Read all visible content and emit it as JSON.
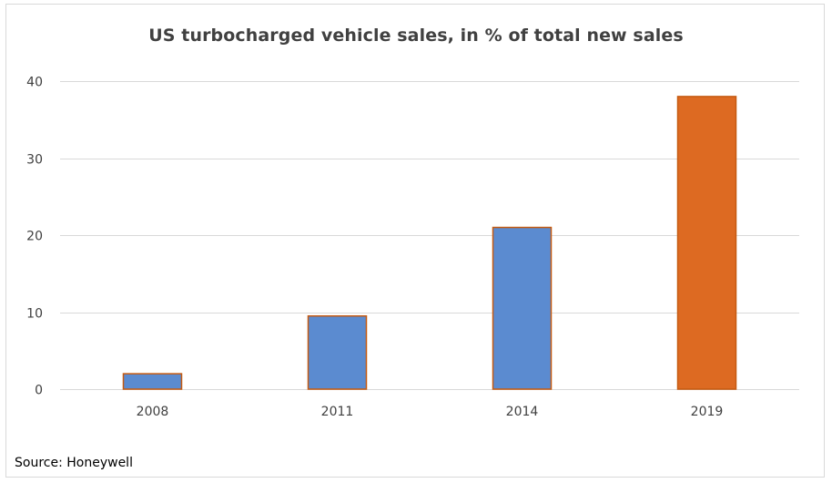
{
  "chart_data": {
    "type": "bar",
    "title": "US turbocharged  vehicle sales, in % of total new sales",
    "categories": [
      "2008",
      "2011",
      "2014",
      "2019"
    ],
    "values": [
      2,
      9.5,
      21,
      38
    ],
    "bar_colors": [
      "#5b8bd0",
      "#5b8bd0",
      "#5b8bd0",
      "#dd6a22"
    ],
    "bar_outline": "#c55a11",
    "ylim": [
      0,
      40
    ],
    "yticks": [
      0,
      10,
      20,
      30,
      40
    ],
    "grid": true,
    "legend": "none",
    "xlabel": "",
    "ylabel": ""
  },
  "source": "Source: Honeywell"
}
